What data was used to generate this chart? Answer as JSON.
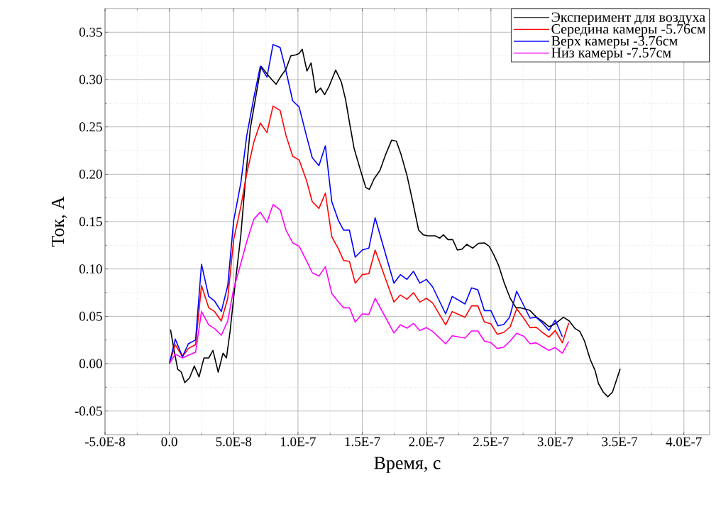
{
  "chart_data": {
    "type": "line",
    "xlabel": "Время, с",
    "ylabel": "Ток, А",
    "xlim": [
      -5e-08,
      4.2e-07
    ],
    "ylim": [
      -0.075,
      0.375
    ],
    "xticks": [
      {
        "value": -5e-08,
        "label": "-5.0E-8"
      },
      {
        "value": 0,
        "label": "0.0"
      },
      {
        "value": 5e-08,
        "label": "5.0E-8"
      },
      {
        "value": 1e-07,
        "label": "1.0E-7"
      },
      {
        "value": 1.5e-07,
        "label": "1.5E-7"
      },
      {
        "value": 2e-07,
        "label": "2.0E-7"
      },
      {
        "value": 2.5e-07,
        "label": "2.5E-7"
      },
      {
        "value": 3e-07,
        "label": "3.0E-7"
      },
      {
        "value": 3.5e-07,
        "label": "3.5E-7"
      },
      {
        "value": 4e-07,
        "label": "4.0E-7"
      }
    ],
    "yticks": [
      {
        "value": -0.05,
        "label": "-0.05"
      },
      {
        "value": 0,
        "label": "0.00"
      },
      {
        "value": 0.05,
        "label": "0.05"
      },
      {
        "value": 0.1,
        "label": "0.10"
      },
      {
        "value": 0.15,
        "label": "0.15"
      },
      {
        "value": 0.2,
        "label": "0.20"
      },
      {
        "value": 0.25,
        "label": "0.25"
      },
      {
        "value": 0.3,
        "label": "0.30"
      },
      {
        "value": 0.35,
        "label": "0.35"
      }
    ],
    "grid": true,
    "legend": "top right",
    "marker": "none",
    "line_style": "solid",
    "series": [
      {
        "name": "Эксперимент для воздуха",
        "color": "#000000",
        "x": [
          9e-10,
          3.7e-09,
          6.5e-09,
          9.3e-09,
          1.2e-08,
          1.57e-08,
          1.94e-08,
          2.31e-08,
          2.69e-08,
          3.06e-08,
          3.39e-08,
          3.8e-08,
          4.17e-08,
          4.44e-08,
          4.72e-08,
          5.09e-08,
          5.56e-08,
          5.93e-08,
          6.3e-08,
          6.67e-08,
          7.13e-08,
          7.59e-08,
          7.96e-08,
          8.3e-08,
          8.7e-08,
          9.07e-08,
          9.44e-08,
          9.82e-08,
          1.009e-07,
          1.033e-07,
          1.07e-07,
          1.102e-07,
          1.139e-07,
          1.176e-07,
          1.207e-07,
          1.241e-07,
          1.293e-07,
          1.337e-07,
          1.37e-07,
          1.4e-07,
          1.436e-07,
          1.482e-07,
          1.527e-07,
          1.555e-07,
          1.591e-07,
          1.637e-07,
          1.682e-07,
          1.728e-07,
          1.765e-07,
          1.801e-07,
          1.847e-07,
          1.892e-07,
          1.938e-07,
          1.975e-07,
          2.011e-07,
          2.066e-07,
          2.102e-07,
          2.13e-07,
          2.166e-07,
          2.203e-07,
          2.239e-07,
          2.276e-07,
          2.312e-07,
          2.358e-07,
          2.403e-07,
          2.449e-07,
          2.486e-07,
          2.522e-07,
          2.559e-07,
          2.604e-07,
          2.65e-07,
          2.695e-07,
          2.727e-07,
          2.8e-07,
          2.855e-07,
          2.909e-07,
          2.951e-07,
          2.991e-07,
          3.027e-07,
          3.064e-07,
          3.109e-07,
          3.155e-07,
          3.191e-07,
          3.227e-07,
          3.273e-07,
          3.309e-07,
          3.336e-07,
          3.373e-07,
          3.409e-07,
          3.445e-07,
          3.473e-07,
          3.505e-07
        ],
        "values": [
          0.036,
          0.014,
          -0.006,
          -0.009,
          -0.02,
          -0.015,
          -0.0025,
          -0.014,
          0.006,
          0.006,
          0.014,
          -0.009,
          0.011,
          0.006,
          0.034,
          0.081,
          0.136,
          0.196,
          0.249,
          null,
          0.314,
          0.306,
          0.3,
          0.295,
          0.304,
          0.311,
          0.325,
          0.326,
          0.3275,
          0.332,
          0.309,
          0.3175,
          0.286,
          0.291,
          0.284,
          0.2925,
          0.31,
          0.2975,
          0.279,
          0.255,
          0.2275,
          0.206,
          0.186,
          0.184,
          0.195,
          0.204,
          0.221,
          0.236,
          0.235,
          0.221,
          0.199,
          0.171,
          0.141,
          0.136,
          0.135,
          0.135,
          0.1325,
          0.136,
          0.131,
          0.131,
          0.12,
          0.121,
          0.126,
          0.122,
          0.127,
          0.1275,
          0.124,
          0.115,
          0.104,
          0.085,
          0.069,
          0.059,
          0.059,
          0.0565,
          0.049,
          0.044,
          0.039,
          0.0415,
          0.045,
          0.049,
          0.045,
          0.037,
          0.034,
          0.024,
          0.004,
          -0.007,
          -0.021,
          -0.03,
          -0.035,
          -0.03,
          -0.0185,
          -0.0055
        ]
      },
      {
        "name": "Середина камеры -5.76см",
        "color": "#ff0000",
        "x": [
          0,
          4.6e-09,
          1.02e-08,
          1.48e-08,
          2.04e-08,
          2.5e-08,
          3.06e-08,
          3.52e-08,
          4.04e-08,
          4.54e-08,
          5e-08,
          5.56e-08,
          6.02e-08,
          6.57e-08,
          7.07e-08,
          7.59e-08,
          8.06e-08,
          8.61e-08,
          9.07e-08,
          9.59e-08,
          1.009e-07,
          1.065e-07,
          1.111e-07,
          1.163e-07,
          1.213e-07,
          1.263e-07,
          1.315e-07,
          1.354e-07,
          1.4e-07,
          1.445e-07,
          1.5e-07,
          1.551e-07,
          1.6e-07,
          1.746e-07,
          1.796e-07,
          1.847e-07,
          1.898e-07,
          1.947e-07,
          1.998e-07,
          2.047e-07,
          2.148e-07,
          2.199e-07,
          2.299e-07,
          2.349e-07,
          2.398e-07,
          2.449e-07,
          2.5e-07,
          2.549e-07,
          2.6e-07,
          2.65e-07,
          2.7e-07,
          2.755e-07,
          2.804e-07,
          2.851e-07,
          2.9e-07,
          2.951e-07,
          3e-07,
          3.055e-07,
          3.105e-07
        ],
        "values": [
          0,
          0.02,
          0.0075,
          0.016,
          0.02,
          0.0825,
          0.059,
          0.055,
          0.045,
          0.069,
          0.131,
          0.166,
          0.201,
          0.234,
          0.254,
          0.244,
          0.272,
          0.2675,
          0.241,
          0.219,
          0.215,
          0.194,
          0.171,
          0.164,
          0.18,
          0.134,
          0.121,
          0.109,
          0.108,
          0.085,
          0.094,
          0.095,
          0.12,
          0.065,
          0.0725,
          0.068,
          0.075,
          0.065,
          0.069,
          0.064,
          0.041,
          0.055,
          0.049,
          0.061,
          0.061,
          0.044,
          0.042,
          0.031,
          0.033,
          0.039,
          0.058,
          0.048,
          0.038,
          0.0385,
          0.033,
          0.028,
          0.035,
          0.022,
          0.043
        ]
      },
      {
        "name": "Верх камеры -3.76см",
        "color": "#0000ff",
        "x": [
          0,
          4.6e-09,
          1.02e-08,
          1.48e-08,
          2.04e-08,
          2.5e-08,
          3.06e-08,
          3.52e-08,
          4.04e-08,
          4.54e-08,
          5e-08,
          5.56e-08,
          6.02e-08,
          6.57e-08,
          7.07e-08,
          7.59e-08,
          8.06e-08,
          8.61e-08,
          9.07e-08,
          9.59e-08,
          1.009e-07,
          1.065e-07,
          1.111e-07,
          1.163e-07,
          1.213e-07,
          1.263e-07,
          1.315e-07,
          1.354e-07,
          1.4e-07,
          1.445e-07,
          1.5e-07,
          1.551e-07,
          1.6e-07,
          1.746e-07,
          1.796e-07,
          1.847e-07,
          1.898e-07,
          1.947e-07,
          1.998e-07,
          2.047e-07,
          2.148e-07,
          2.199e-07,
          2.299e-07,
          2.349e-07,
          2.398e-07,
          2.449e-07,
          2.5e-07,
          2.554e-07,
          2.6e-07,
          2.645e-07,
          2.7e-07,
          2.755e-07,
          2.804e-07,
          2.851e-07,
          2.9e-07,
          2.951e-07,
          3e-07,
          3.055e-07
        ],
        "values": [
          0,
          0.026,
          0.0075,
          0.021,
          0.025,
          0.105,
          0.071,
          0.066,
          0.055,
          0.0825,
          0.151,
          0.191,
          0.241,
          0.281,
          0.314,
          0.3025,
          0.337,
          0.334,
          0.309,
          0.2775,
          0.271,
          0.241,
          0.2175,
          0.209,
          0.23,
          0.171,
          0.151,
          0.141,
          0.141,
          0.1125,
          0.12,
          0.122,
          0.154,
          0.085,
          0.094,
          0.089,
          0.0975,
          0.085,
          0.089,
          0.081,
          0.0525,
          0.071,
          0.063,
          0.08,
          0.078,
          0.056,
          0.056,
          0.04,
          0.0415,
          0.049,
          0.0765,
          0.0615,
          0.048,
          0.049,
          0.043,
          0.035,
          0.046,
          0.0285
        ]
      },
      {
        "name": "Низ камеры -7.57см",
        "color": "#ff00ff",
        "x": [
          0,
          4.6e-09,
          1.02e-08,
          1.48e-08,
          2.04e-08,
          2.5e-08,
          3.06e-08,
          3.52e-08,
          4.04e-08,
          4.54e-08,
          5e-08,
          5.56e-08,
          6.02e-08,
          6.57e-08,
          7.07e-08,
          7.59e-08,
          8.06e-08,
          8.61e-08,
          9.07e-08,
          9.59e-08,
          1.009e-07,
          1.065e-07,
          1.111e-07,
          1.163e-07,
          1.213e-07,
          1.263e-07,
          1.315e-07,
          1.354e-07,
          1.4e-07,
          1.445e-07,
          1.5e-07,
          1.551e-07,
          1.6e-07,
          1.746e-07,
          1.796e-07,
          1.847e-07,
          1.898e-07,
          1.947e-07,
          1.998e-07,
          2.047e-07,
          2.148e-07,
          2.199e-07,
          2.299e-07,
          2.349e-07,
          2.398e-07,
          2.449e-07,
          2.5e-07,
          2.549e-07,
          2.6e-07,
          2.65e-07,
          2.7e-07,
          2.755e-07,
          2.804e-07,
          2.851e-07,
          2.9e-07,
          2.951e-07,
          3e-07,
          3.055e-07,
          3.105e-07
        ],
        "values": [
          0,
          0.01,
          0.006,
          0.009,
          0.012,
          0.055,
          0.041,
          0.037,
          0.03,
          0.045,
          0.079,
          0.106,
          0.129,
          0.1525,
          0.16,
          0.149,
          0.168,
          0.1625,
          0.141,
          0.1275,
          0.124,
          0.109,
          0.096,
          0.0925,
          0.1025,
          0.074,
          0.065,
          0.059,
          0.059,
          0.044,
          0.0525,
          0.052,
          0.069,
          0.0325,
          0.041,
          0.0375,
          0.0425,
          0.035,
          0.038,
          0.034,
          0.021,
          0.0295,
          0.027,
          0.0345,
          0.0345,
          0.024,
          0.022,
          0.016,
          0.0175,
          0.024,
          0.032,
          0.029,
          0.021,
          0.022,
          0.018,
          0.014,
          0.017,
          0.011,
          0.0235
        ]
      }
    ]
  }
}
